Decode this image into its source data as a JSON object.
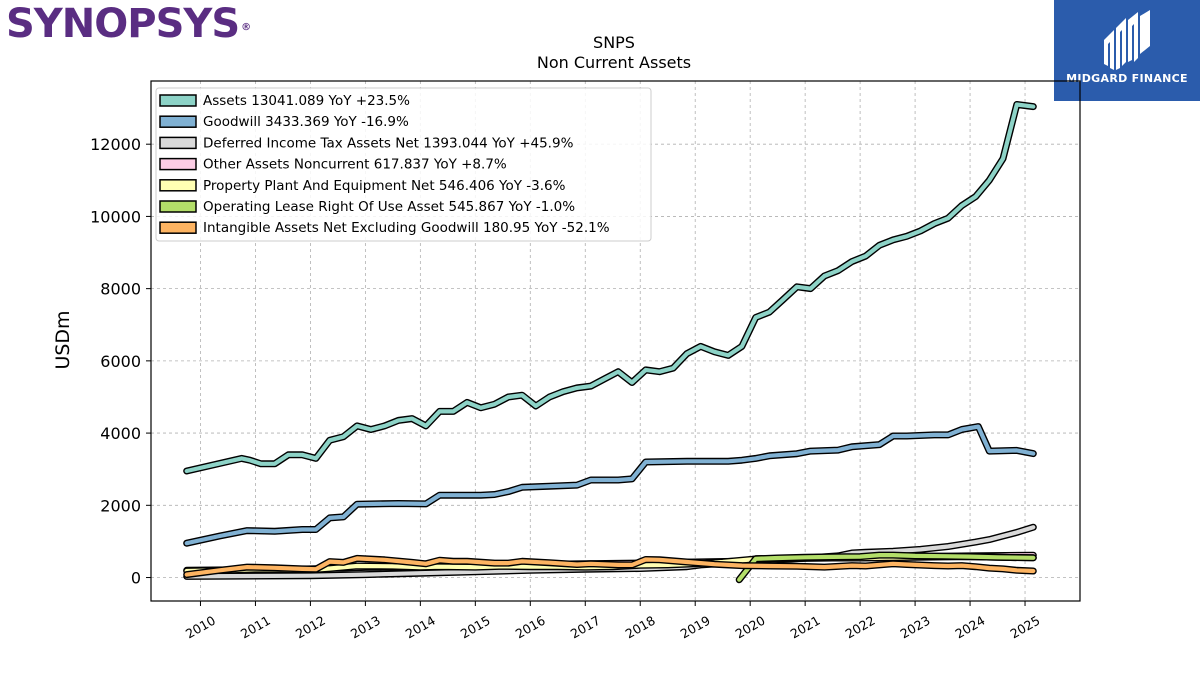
{
  "branding": {
    "left_logo_text": "SYNOPSYS",
    "left_logo_mark": "®",
    "right_logo_text": "MIDGARD FINANCE",
    "left_logo_color": "#5a2d82",
    "right_logo_bg": "#2b5cac"
  },
  "chart_data": {
    "type": "line",
    "title": "SNPS",
    "subtitle": "Non Current  Assets",
    "xlabel": "",
    "ylabel": "USDm",
    "xlim": [
      2009.1,
      2026.0
    ],
    "ylim": [
      -650,
      13750
    ],
    "x_ticks": [
      2010,
      2011,
      2012,
      2013,
      2014,
      2015,
      2016,
      2017,
      2018,
      2019,
      2020,
      2021,
      2022,
      2023,
      2024,
      2025
    ],
    "y_ticks": [
      0,
      2000,
      4000,
      6000,
      8000,
      10000,
      12000
    ],
    "grid": true,
    "legend_position": "top-left",
    "series": [
      {
        "name": "Assets  13041.089 YoY +23.5%",
        "color": "#8dd3c7",
        "points": [
          [
            2009.75,
            2950
          ],
          [
            2010.75,
            3300
          ],
          [
            2010.9,
            3250
          ],
          [
            2011.1,
            3150
          ],
          [
            2011.35,
            3150
          ],
          [
            2011.6,
            3400
          ],
          [
            2011.85,
            3400
          ],
          [
            2012.1,
            3300
          ],
          [
            2012.35,
            3800
          ],
          [
            2012.6,
            3900
          ],
          [
            2012.85,
            4200
          ],
          [
            2013.1,
            4100
          ],
          [
            2013.35,
            4200
          ],
          [
            2013.6,
            4350
          ],
          [
            2013.85,
            4400
          ],
          [
            2014.1,
            4200
          ],
          [
            2014.35,
            4600
          ],
          [
            2014.6,
            4600
          ],
          [
            2014.85,
            4850
          ],
          [
            2015.1,
            4700
          ],
          [
            2015.35,
            4800
          ],
          [
            2015.6,
            5000
          ],
          [
            2015.85,
            5050
          ],
          [
            2016.1,
            4750
          ],
          [
            2016.35,
            5000
          ],
          [
            2016.6,
            5150
          ],
          [
            2016.85,
            5250
          ],
          [
            2017.1,
            5300
          ],
          [
            2017.35,
            5500
          ],
          [
            2017.6,
            5700
          ],
          [
            2017.85,
            5400
          ],
          [
            2018.1,
            5750
          ],
          [
            2018.35,
            5700
          ],
          [
            2018.6,
            5800
          ],
          [
            2018.85,
            6200
          ],
          [
            2019.1,
            6400
          ],
          [
            2019.35,
            6250
          ],
          [
            2019.6,
            6150
          ],
          [
            2019.85,
            6400
          ],
          [
            2020.1,
            7200
          ],
          [
            2020.35,
            7350
          ],
          [
            2020.6,
            7700
          ],
          [
            2020.85,
            8050
          ],
          [
            2021.1,
            8000
          ],
          [
            2021.35,
            8350
          ],
          [
            2021.6,
            8500
          ],
          [
            2021.85,
            8750
          ],
          [
            2022.1,
            8900
          ],
          [
            2022.35,
            9200
          ],
          [
            2022.6,
            9350
          ],
          [
            2022.85,
            9450
          ],
          [
            2023.1,
            9600
          ],
          [
            2023.35,
            9800
          ],
          [
            2023.6,
            9950
          ],
          [
            2023.85,
            10300
          ],
          [
            2024.1,
            10550
          ],
          [
            2024.35,
            11000
          ],
          [
            2024.6,
            11600
          ],
          [
            2024.85,
            13100
          ],
          [
            2025.15,
            13041
          ]
        ]
      },
      {
        "name": "Goodwill  3433.369 YoY -16.9%",
        "color": "#80b1d3",
        "points": [
          [
            2009.75,
            950
          ],
          [
            2010.35,
            1150
          ],
          [
            2010.85,
            1300
          ],
          [
            2011.35,
            1280
          ],
          [
            2011.85,
            1330
          ],
          [
            2012.1,
            1330
          ],
          [
            2012.35,
            1650
          ],
          [
            2012.6,
            1680
          ],
          [
            2012.85,
            2030
          ],
          [
            2013.6,
            2050
          ],
          [
            2014.1,
            2040
          ],
          [
            2014.35,
            2280
          ],
          [
            2015.1,
            2280
          ],
          [
            2015.35,
            2300
          ],
          [
            2015.6,
            2380
          ],
          [
            2015.85,
            2500
          ],
          [
            2016.35,
            2530
          ],
          [
            2016.85,
            2560
          ],
          [
            2017.1,
            2700
          ],
          [
            2017.6,
            2700
          ],
          [
            2017.85,
            2730
          ],
          [
            2018.1,
            3200
          ],
          [
            2018.85,
            3220
          ],
          [
            2019.6,
            3220
          ],
          [
            2019.85,
            3250
          ],
          [
            2020.1,
            3300
          ],
          [
            2020.35,
            3370
          ],
          [
            2020.85,
            3430
          ],
          [
            2021.1,
            3500
          ],
          [
            2021.6,
            3530
          ],
          [
            2021.85,
            3620
          ],
          [
            2022.35,
            3680
          ],
          [
            2022.6,
            3920
          ],
          [
            2022.85,
            3920
          ],
          [
            2023.35,
            3950
          ],
          [
            2023.6,
            3950
          ],
          [
            2023.85,
            4100
          ],
          [
            2024.15,
            4180
          ],
          [
            2024.35,
            3500
          ],
          [
            2024.85,
            3520
          ],
          [
            2025.15,
            3433
          ]
        ]
      },
      {
        "name": "Deferred Income Tax Assets Net  1393.044 YoY +45.9%",
        "color": "#d9d9d9",
        "points": [
          [
            2009.75,
            30
          ],
          [
            2012.0,
            50
          ],
          [
            2013.0,
            80
          ],
          [
            2014.0,
            120
          ],
          [
            2015.0,
            160
          ],
          [
            2016.0,
            200
          ],
          [
            2017.0,
            230
          ],
          [
            2018.0,
            250
          ],
          [
            2018.85,
            300
          ],
          [
            2019.1,
            350
          ],
          [
            2019.6,
            400
          ],
          [
            2020.1,
            450
          ],
          [
            2020.6,
            500
          ],
          [
            2021.1,
            550
          ],
          [
            2021.6,
            600
          ],
          [
            2021.85,
            680
          ],
          [
            2022.1,
            700
          ],
          [
            2022.6,
            730
          ],
          [
            2023.1,
            780
          ],
          [
            2023.6,
            860
          ],
          [
            2023.85,
            920
          ],
          [
            2024.1,
            980
          ],
          [
            2024.35,
            1050
          ],
          [
            2024.6,
            1150
          ],
          [
            2024.85,
            1250
          ],
          [
            2025.15,
            1393
          ]
        ]
      },
      {
        "name": "Other Assets Noncurrent  617.837 YoY +8.7%",
        "color": "#fccde5",
        "points": [
          [
            2009.75,
            200
          ],
          [
            2011.0,
            220
          ],
          [
            2012.0,
            240
          ],
          [
            2013.0,
            280
          ],
          [
            2014.0,
            300
          ],
          [
            2015.0,
            330
          ],
          [
            2016.0,
            360
          ],
          [
            2017.0,
            380
          ],
          [
            2018.0,
            400
          ],
          [
            2019.0,
            430
          ],
          [
            2019.8,
            450
          ],
          [
            2020.1,
            520
          ],
          [
            2021.0,
            540
          ],
          [
            2022.0,
            560
          ],
          [
            2023.0,
            580
          ],
          [
            2024.0,
            600
          ],
          [
            2025.15,
            618
          ]
        ]
      },
      {
        "name": "Property Plant And Equipment Net  546.406 YoY -3.6%",
        "color": "#ffffb3",
        "points": [
          [
            2009.75,
            180
          ],
          [
            2010.5,
            200
          ],
          [
            2011.0,
            230
          ],
          [
            2012.0,
            210
          ],
          [
            2012.35,
            250
          ],
          [
            2012.85,
            320
          ],
          [
            2013.5,
            310
          ],
          [
            2014.0,
            290
          ],
          [
            2014.35,
            300
          ],
          [
            2015.0,
            290
          ],
          [
            2015.5,
            310
          ],
          [
            2016.0,
            300
          ],
          [
            2016.5,
            300
          ],
          [
            2017.0,
            290
          ],
          [
            2017.5,
            300
          ],
          [
            2018.0,
            340
          ],
          [
            2018.5,
            350
          ],
          [
            2019.0,
            380
          ],
          [
            2019.5,
            430
          ],
          [
            2020.0,
            500
          ],
          [
            2020.5,
            520
          ],
          [
            2021.0,
            530
          ],
          [
            2021.5,
            540
          ],
          [
            2022.0,
            540
          ],
          [
            2022.5,
            550
          ],
          [
            2023.0,
            560
          ],
          [
            2023.5,
            570
          ],
          [
            2024.0,
            580
          ],
          [
            2024.5,
            560
          ],
          [
            2025.15,
            546
          ]
        ]
      },
      {
        "name": "Operating Lease Right Of Use Asset  545.867 YoY -1.0%",
        "color": "#b3de69",
        "points": [
          [
            2019.8,
            -60
          ],
          [
            2020.1,
            520
          ],
          [
            2020.5,
            540
          ],
          [
            2021.0,
            560
          ],
          [
            2021.5,
            570
          ],
          [
            2022.0,
            580
          ],
          [
            2022.35,
            620
          ],
          [
            2022.6,
            620
          ],
          [
            2023.0,
            600
          ],
          [
            2023.5,
            590
          ],
          [
            2024.0,
            580
          ],
          [
            2024.5,
            560
          ],
          [
            2025.15,
            546
          ]
        ]
      },
      {
        "name": "Intangible Assets Net Excluding Goodwill  180.95 YoY -52.1%",
        "color": "#fdb462",
        "points": [
          [
            2009.75,
            80
          ],
          [
            2010.35,
            200
          ],
          [
            2010.85,
            290
          ],
          [
            2011.35,
            270
          ],
          [
            2011.85,
            240
          ],
          [
            2012.1,
            230
          ],
          [
            2012.35,
            440
          ],
          [
            2012.6,
            420
          ],
          [
            2012.85,
            530
          ],
          [
            2013.35,
            490
          ],
          [
            2013.85,
            420
          ],
          [
            2014.1,
            380
          ],
          [
            2014.35,
            480
          ],
          [
            2014.6,
            450
          ],
          [
            2014.85,
            450
          ],
          [
            2015.35,
            400
          ],
          [
            2015.6,
            400
          ],
          [
            2015.85,
            450
          ],
          [
            2016.35,
            410
          ],
          [
            2016.85,
            360
          ],
          [
            2017.1,
            380
          ],
          [
            2017.6,
            350
          ],
          [
            2017.85,
            350
          ],
          [
            2018.1,
            500
          ],
          [
            2018.35,
            490
          ],
          [
            2018.85,
            430
          ],
          [
            2019.35,
            370
          ],
          [
            2019.85,
            330
          ],
          [
            2020.35,
            320
          ],
          [
            2020.85,
            310
          ],
          [
            2021.35,
            290
          ],
          [
            2021.85,
            330
          ],
          [
            2022.1,
            320
          ],
          [
            2022.6,
            380
          ],
          [
            2022.85,
            360
          ],
          [
            2023.35,
            330
          ],
          [
            2023.6,
            320
          ],
          [
            2023.85,
            330
          ],
          [
            2024.1,
            300
          ],
          [
            2024.35,
            260
          ],
          [
            2024.6,
            240
          ],
          [
            2024.85,
            200
          ],
          [
            2025.15,
            181
          ]
        ]
      }
    ]
  }
}
